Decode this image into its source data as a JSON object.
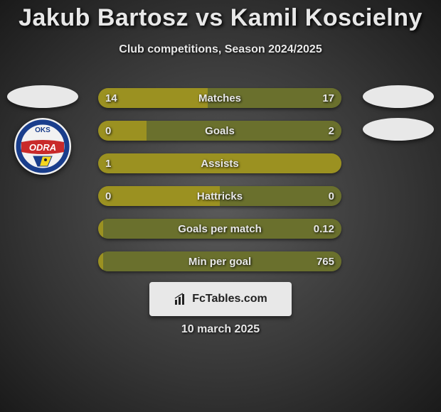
{
  "title": "Jakub Bartosz vs Kamil Koscielny",
  "subtitle": "Club competitions, Season 2024/2025",
  "date_text": "10 march 2025",
  "footer_brand": "FcTables.com",
  "colors": {
    "player1_bar": "#9b9121",
    "player2_bar": "#6a702d",
    "bar_bg": "#4a4a2f",
    "text": "#e8e8e8",
    "shadow": "#000000"
  },
  "logo_left": {
    "ring": "#1a3e8c",
    "top_text": "OKS",
    "band_color": "#c92a2a",
    "band_text": "ODRA"
  },
  "stats": [
    {
      "label": "Matches",
      "left_display": "14",
      "right_display": "17",
      "left_pct": 45,
      "right_pct": 55
    },
    {
      "label": "Goals",
      "left_display": "0",
      "right_display": "2",
      "left_pct": 20,
      "right_pct": 80
    },
    {
      "label": "Assists",
      "left_display": "1",
      "right_display": "",
      "left_pct": 100,
      "right_pct": 0
    },
    {
      "label": "Hattricks",
      "left_display": "0",
      "right_display": "0",
      "left_pct": 50,
      "right_pct": 50
    },
    {
      "label": "Goals per match",
      "left_display": "",
      "right_display": "0.12",
      "left_pct": 2,
      "right_pct": 98
    },
    {
      "label": "Min per goal",
      "left_display": "",
      "right_display": "765",
      "left_pct": 2,
      "right_pct": 98
    }
  ]
}
